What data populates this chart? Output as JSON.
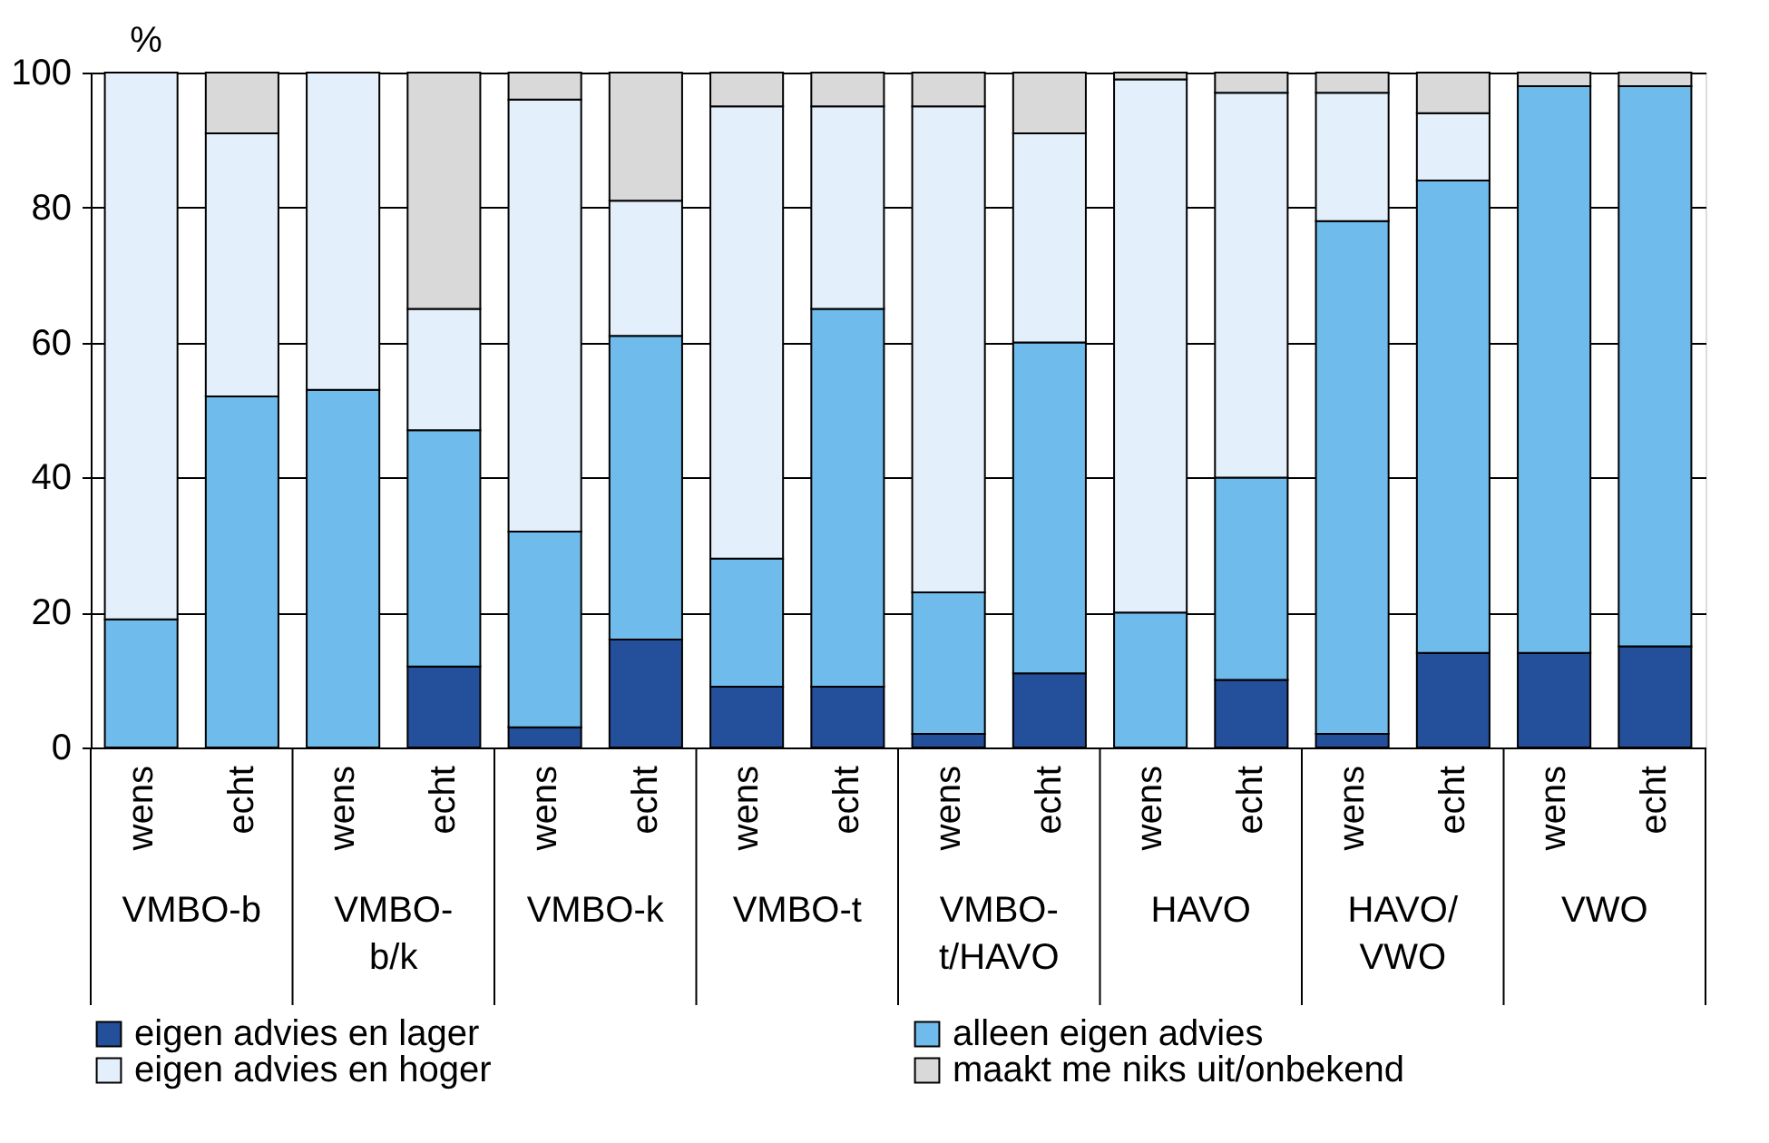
{
  "chart_data": {
    "type": "bar",
    "stacked": true,
    "ylabel": "%",
    "categories": [
      "wens",
      "echt",
      "wens",
      "echt",
      "wens",
      "echt",
      "wens",
      "echt",
      "wens",
      "echt",
      "wens",
      "echt",
      "wens",
      "echt",
      "wens",
      "echt"
    ],
    "annotations": [
      "VMBO-b",
      "VMBO-b/k",
      "VMBO-k",
      "VMBO-t",
      "VMBO-t/HAVO",
      "HAVO",
      "HAVO/VWO",
      "VWO"
    ],
    "series": [
      {
        "name": "eigen advies en lager",
        "color": "#244f9a",
        "values": [
          0,
          0,
          0,
          12,
          3,
          16,
          9,
          9,
          2,
          11,
          0,
          10,
          2,
          14,
          14,
          15
        ]
      },
      {
        "name": "alleen eigen advies",
        "color": "#6fbbeb",
        "values": [
          19,
          52,
          53,
          35,
          29,
          45,
          19,
          56,
          21,
          49,
          20,
          30,
          76,
          70,
          84,
          83
        ]
      },
      {
        "name": "eigen advies en hoger",
        "color": "#e3f0fb",
        "values": [
          81,
          39,
          47,
          18,
          64,
          20,
          67,
          30,
          72,
          31,
          79,
          57,
          19,
          10,
          0,
          0
        ]
      },
      {
        "name": "maakt me niks uit/onbekend",
        "color": "#d9d9d9",
        "values": [
          0,
          9,
          0,
          35,
          4,
          19,
          5,
          5,
          5,
          9,
          1,
          3,
          3,
          6,
          2,
          2
        ]
      }
    ],
    "ylim": [
      0,
      100
    ],
    "yticks": [
      0,
      20,
      40,
      60,
      80,
      100
    ],
    "grid": "y",
    "legend": "bottom"
  }
}
